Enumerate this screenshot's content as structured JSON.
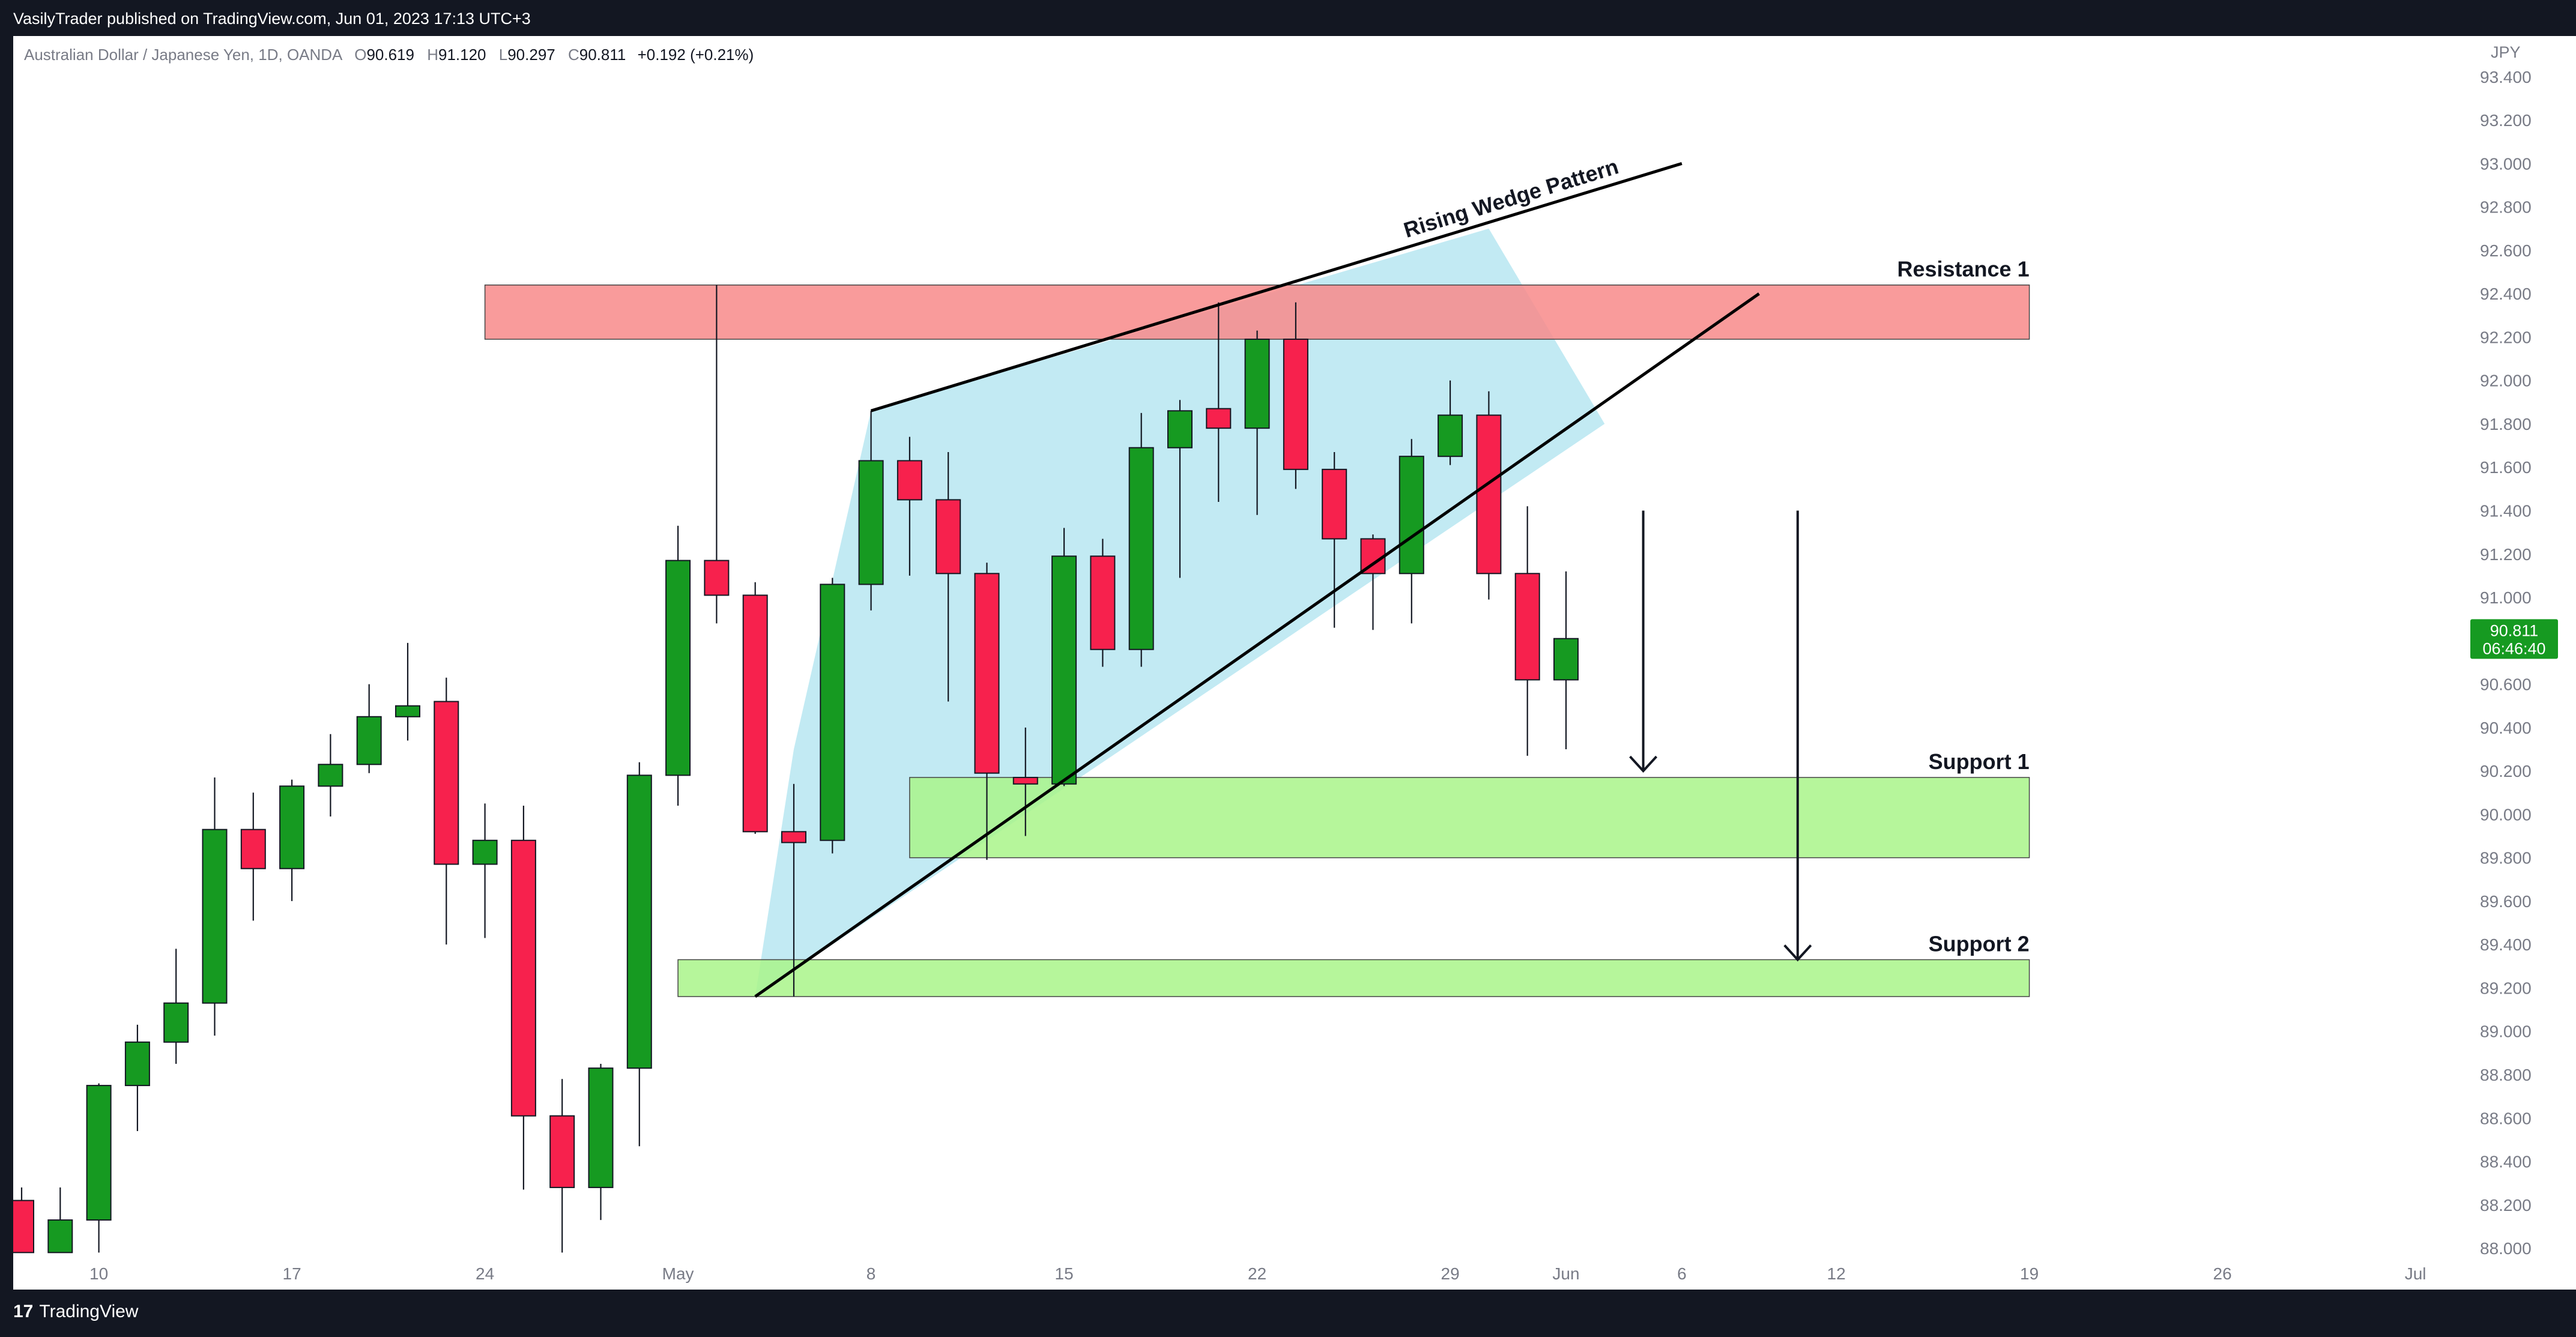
{
  "header": {
    "published_line": "VasilyTrader published on TradingView.com, Jun 01, 2023 17:13 UTC+3"
  },
  "legend": {
    "symbol_line": "Australian Dollar / Japanese Yen, 1D, OANDA",
    "o_label": "O",
    "o_value": "90.619",
    "h_label": "H",
    "h_value": "91.120",
    "l_label": "L",
    "l_value": "90.297",
    "c_label": "C",
    "c_value": "90.811",
    "change": "+0.192 (+0.21%)"
  },
  "footer": {
    "brand": "TradingView",
    "brand_mark": "17"
  },
  "colors": {
    "up": "#169a21",
    "down": "#f7214d",
    "resistance_zone": "#f88a8a",
    "support_zone": "#a9f48a",
    "wedge_fill": "#bfe9f2",
    "price_badge": "#169a21"
  },
  "chart_data": {
    "type": "candlestick",
    "currency_label": "JPY",
    "y_range": [
      87.92,
      93.56
    ],
    "y_ticks": [
      "93.400",
      "93.200",
      "93.000",
      "92.800",
      "92.600",
      "92.400",
      "92.200",
      "92.000",
      "91.800",
      "91.600",
      "91.400",
      "91.200",
      "91.000",
      "90.800",
      "90.600",
      "90.400",
      "90.200",
      "90.000",
      "89.800",
      "89.600",
      "89.400",
      "89.200",
      "89.000",
      "88.800",
      "88.600",
      "88.400",
      "88.200",
      "88.000"
    ],
    "x_ticks": [
      {
        "label": "10",
        "day": 8
      },
      {
        "label": "17",
        "day": 13
      },
      {
        "label": "24",
        "day": 18
      },
      {
        "label": "May",
        "day": 23
      },
      {
        "label": "8",
        "day": 28
      },
      {
        "label": "15",
        "day": 33
      },
      {
        "label": "22",
        "day": 38
      },
      {
        "label": "29",
        "day": 43
      },
      {
        "label": "Jun",
        "day": 46
      },
      {
        "label": "6",
        "day": 49
      },
      {
        "label": "12",
        "day": 53
      },
      {
        "label": "19",
        "day": 58
      },
      {
        "label": "26",
        "day": 63
      },
      {
        "label": "Jul",
        "day": 68
      }
    ],
    "candles": [
      {
        "day": 6,
        "o": 88.22,
        "h": 88.28,
        "l": 87.98,
        "c": 87.98
      },
      {
        "day": 7,
        "o": 87.98,
        "h": 88.28,
        "l": 87.98,
        "c": 88.13
      },
      {
        "day": 8,
        "o": 88.13,
        "h": 88.76,
        "l": 87.98,
        "c": 88.75
      },
      {
        "day": 9,
        "o": 88.75,
        "h": 89.03,
        "l": 88.54,
        "c": 88.95
      },
      {
        "day": 10,
        "o": 88.95,
        "h": 89.38,
        "l": 88.85,
        "c": 89.13
      },
      {
        "day": 11,
        "o": 89.13,
        "h": 90.17,
        "l": 88.98,
        "c": 89.93
      },
      {
        "day": 12,
        "o": 89.93,
        "h": 90.1,
        "l": 89.51,
        "c": 89.75
      },
      {
        "day": 13,
        "o": 89.75,
        "h": 90.16,
        "l": 89.6,
        "c": 90.13
      },
      {
        "day": 14,
        "o": 90.13,
        "h": 90.37,
        "l": 89.99,
        "c": 90.23
      },
      {
        "day": 15,
        "o": 90.23,
        "h": 90.6,
        "l": 90.19,
        "c": 90.45
      },
      {
        "day": 16,
        "o": 90.45,
        "h": 90.79,
        "l": 90.34,
        "c": 90.5
      },
      {
        "day": 17,
        "o": 90.52,
        "h": 90.63,
        "l": 89.4,
        "c": 89.77
      },
      {
        "day": 18,
        "o": 89.77,
        "h": 90.05,
        "l": 89.43,
        "c": 89.88
      },
      {
        "day": 19,
        "o": 89.88,
        "h": 90.04,
        "l": 88.27,
        "c": 88.61
      },
      {
        "day": 20,
        "o": 88.61,
        "h": 88.78,
        "l": 87.98,
        "c": 88.28
      },
      {
        "day": 21,
        "o": 88.28,
        "h": 88.85,
        "l": 88.13,
        "c": 88.83
      },
      {
        "day": 22,
        "o": 88.83,
        "h": 90.24,
        "l": 88.47,
        "c": 90.18
      },
      {
        "day": 23,
        "o": 90.18,
        "h": 91.33,
        "l": 90.04,
        "c": 91.17
      },
      {
        "day": 24,
        "o": 91.17,
        "h": 92.44,
        "l": 90.88,
        "c": 91.01
      },
      {
        "day": 25,
        "o": 91.01,
        "h": 91.07,
        "l": 89.91,
        "c": 89.92
      },
      {
        "day": 26,
        "o": 89.92,
        "h": 90.14,
        "l": 89.16,
        "c": 89.87
      },
      {
        "day": 27,
        "o": 89.88,
        "h": 91.09,
        "l": 89.82,
        "c": 91.06
      },
      {
        "day": 28,
        "o": 91.06,
        "h": 91.86,
        "l": 90.94,
        "c": 91.63
      },
      {
        "day": 29,
        "o": 91.63,
        "h": 91.74,
        "l": 91.1,
        "c": 91.45
      },
      {
        "day": 30,
        "o": 91.45,
        "h": 91.67,
        "l": 90.52,
        "c": 91.11
      },
      {
        "day": 31,
        "o": 91.11,
        "h": 91.16,
        "l": 89.79,
        "c": 90.19
      },
      {
        "day": 32,
        "o": 90.17,
        "h": 90.4,
        "l": 89.9,
        "c": 90.14
      },
      {
        "day": 33,
        "o": 90.14,
        "h": 91.32,
        "l": 90.13,
        "c": 91.19
      },
      {
        "day": 34,
        "o": 91.19,
        "h": 91.27,
        "l": 90.68,
        "c": 90.76
      },
      {
        "day": 35,
        "o": 90.76,
        "h": 91.85,
        "l": 90.68,
        "c": 91.69
      },
      {
        "day": 36,
        "o": 91.69,
        "h": 91.91,
        "l": 91.09,
        "c": 91.86
      },
      {
        "day": 37,
        "o": 91.87,
        "h": 92.36,
        "l": 91.44,
        "c": 91.78
      },
      {
        "day": 38,
        "o": 91.78,
        "h": 92.23,
        "l": 91.38,
        "c": 92.19
      },
      {
        "day": 39,
        "o": 92.19,
        "h": 92.36,
        "l": 91.5,
        "c": 91.59
      },
      {
        "day": 40,
        "o": 91.59,
        "h": 91.67,
        "l": 90.86,
        "c": 91.27
      },
      {
        "day": 41,
        "o": 91.27,
        "h": 91.29,
        "l": 90.85,
        "c": 91.11
      },
      {
        "day": 42,
        "o": 91.11,
        "h": 91.73,
        "l": 90.88,
        "c": 91.65
      },
      {
        "day": 43,
        "o": 91.65,
        "h": 92.0,
        "l": 91.61,
        "c": 91.84
      },
      {
        "day": 44,
        "o": 91.84,
        "h": 91.95,
        "l": 90.99,
        "c": 91.11
      },
      {
        "day": 45,
        "o": 91.11,
        "h": 91.42,
        "l": 90.27,
        "c": 90.62
      },
      {
        "day": 46,
        "o": 90.62,
        "h": 91.12,
        "l": 90.3,
        "c": 90.81
      }
    ],
    "last_price": "90.811",
    "countdown": "06:46:40",
    "zones": [
      {
        "name": "Resistance 1",
        "from_day": 18.0,
        "to_day": 58.0,
        "top": 92.44,
        "bottom": 92.19,
        "fill": "#f88a8a"
      },
      {
        "name": "Support 1",
        "from_day": 29.0,
        "to_day": 58.0,
        "top": 90.17,
        "bottom": 89.8,
        "fill": "#a9f48a"
      },
      {
        "name": "Support 2",
        "from_day": 23.0,
        "to_day": 58.0,
        "top": 89.33,
        "bottom": 89.16,
        "fill": "#a9f48a"
      }
    ],
    "pattern_label": "Rising Wedge Pattern",
    "wedge": {
      "upper": [
        {
          "day": 28.0,
          "price": 91.86
        },
        {
          "day": 49.0,
          "price": 93.0
        }
      ],
      "lower": [
        {
          "day": 25.0,
          "price": 89.16
        },
        {
          "day": 51.0,
          "price": 92.4
        }
      ],
      "shade": [
        {
          "day": 25.0,
          "price": 89.16
        },
        {
          "day": 26.0,
          "price": 90.3
        },
        {
          "day": 28.0,
          "price": 91.86
        },
        {
          "day": 44.0,
          "price": 92.7
        },
        {
          "day": 47.0,
          "price": 91.8
        }
      ]
    },
    "arrows": [
      {
        "day": 48.0,
        "from": 91.4,
        "to": 90.2
      },
      {
        "day": 52.0,
        "from": 91.4,
        "to": 89.33
      }
    ],
    "grid": false
  }
}
